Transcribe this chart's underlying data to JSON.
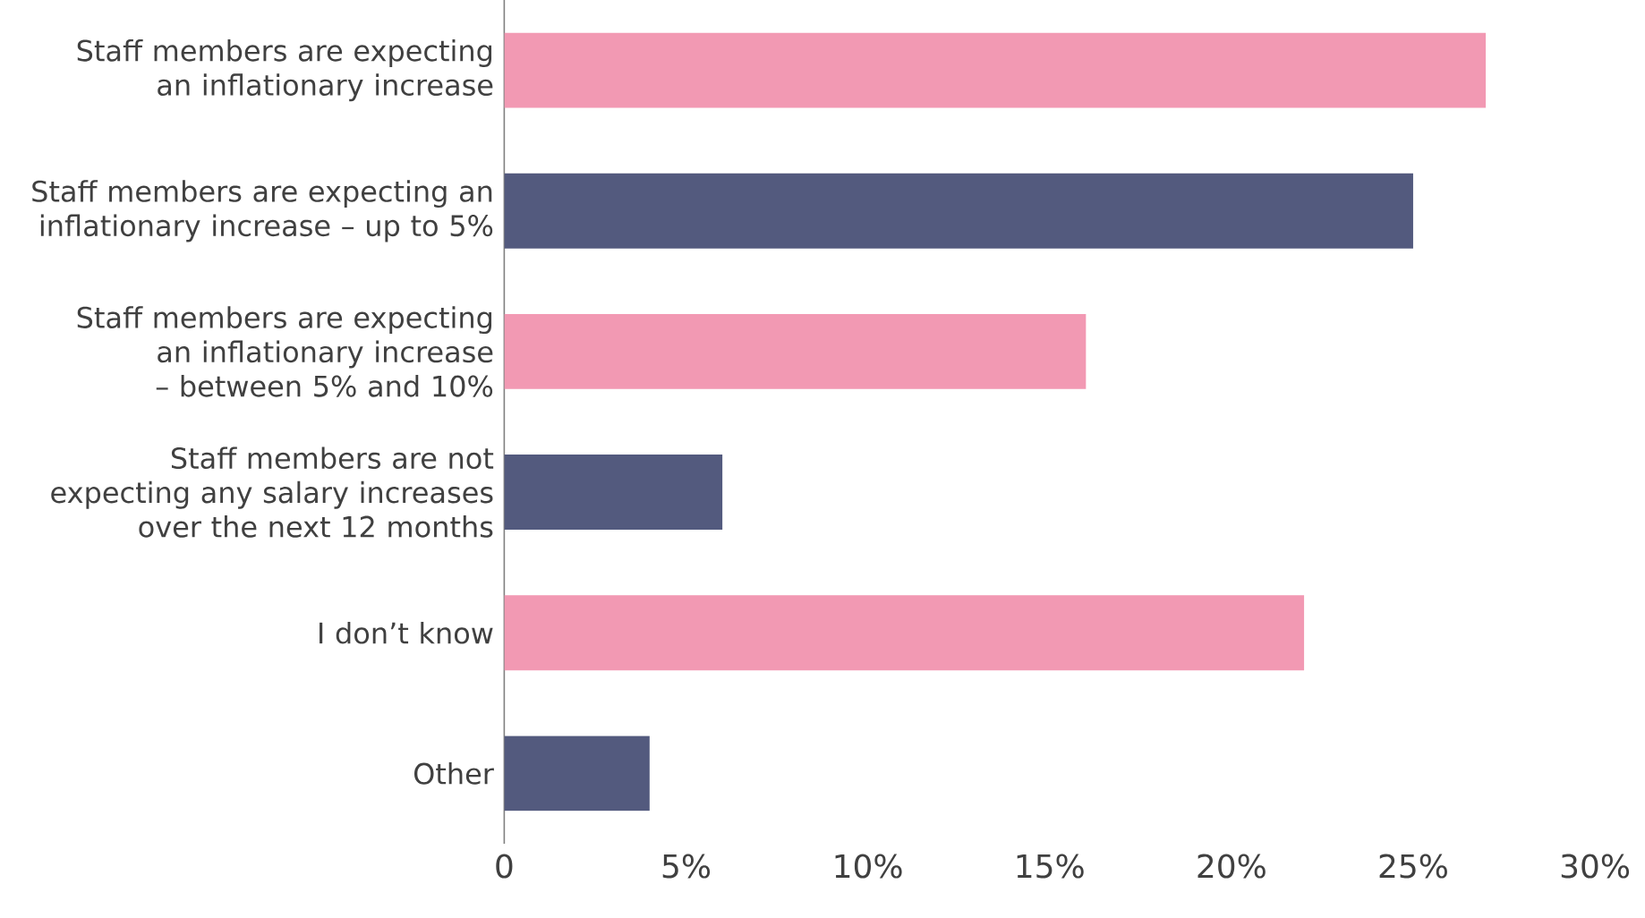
{
  "chart_data": {
    "type": "bar",
    "orientation": "horizontal",
    "categories": [
      "Staff members are expecting an inflationary increase",
      "Staff members are expecting an inflationary increase – up to 5%",
      "Staff members are expecting an inflationary increase – between 5% and 10%",
      "Staff members are not expecting any salary increases over the next 12 months",
      "I don’t know",
      "Other"
    ],
    "values": [
      27,
      25,
      16,
      6,
      22,
      4
    ],
    "colors": [
      "#f299b3",
      "#535a7e",
      "#f299b3",
      "#535a7e",
      "#f299b3",
      "#535a7e"
    ],
    "xlim": [
      0,
      30
    ],
    "xticks": [
      0,
      {
        "value": 5,
        "label": "5%"
      },
      {
        "value": 10,
        "label": "10%"
      },
      {
        "value": 15,
        "label": "15%"
      },
      {
        "value": 20,
        "label": "20%"
      },
      {
        "value": 25,
        "label": "25%"
      },
      {
        "value": 30,
        "label": "30%"
      }
    ],
    "grid": false
  }
}
